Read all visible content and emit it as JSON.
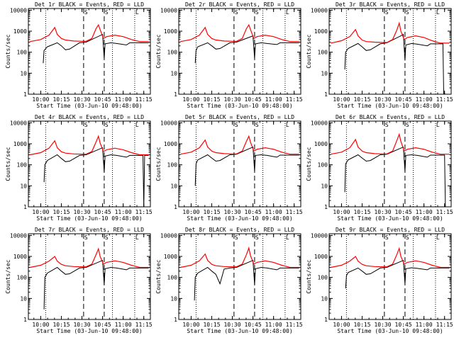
{
  "figure": {
    "ylabel": "Counts/sec",
    "xlabel": "Start Time (03-Jun-10 09:48:00)",
    "x_ticks": [
      "10:00",
      "10:15",
      "10:30",
      "10:45",
      "11:00",
      "11:15"
    ],
    "y_ticks": [
      "1",
      "10",
      "100",
      "1000",
      "10000"
    ],
    "top_markers": [
      "S",
      "S",
      "L"
    ],
    "colors": {
      "events": "#000000",
      "lld": "#ff0000"
    }
  },
  "chart_data": [
    {
      "type": "line",
      "title": "Det 1r BLACK = Events, RED = LLD",
      "xlim": [
        9.85,
        11.33
      ],
      "ylim": [
        1,
        12000
      ],
      "yscale": "log",
      "dotted_x": [
        10.06,
        10.87,
        11.14
      ],
      "dashed_x": [
        10.52,
        10.77
      ],
      "series": [
        {
          "name": "Events",
          "color": "#000000",
          "x": [
            10.03,
            10.04,
            10.08,
            10.2,
            10.25,
            10.3,
            10.35,
            10.47,
            10.55,
            10.75,
            10.77,
            10.78,
            10.85,
            10.92,
            11.04,
            11.08,
            11.31
          ],
          "values": [
            30,
            120,
            180,
            280,
            200,
            130,
            140,
            280,
            300,
            700,
            50,
            250,
            280,
            260,
            220,
            280,
            280
          ]
        },
        {
          "name": "LLD",
          "color": "#ff0000",
          "x": [
            9.87,
            10.0,
            10.1,
            10.17,
            10.2,
            10.25,
            10.3,
            10.4,
            10.5,
            10.55,
            10.62,
            10.67,
            10.7,
            10.72,
            10.76,
            10.8,
            10.9,
            11.0,
            11.1,
            11.2,
            11.31
          ],
          "values": [
            320,
            400,
            650,
            1500,
            700,
            450,
            380,
            340,
            330,
            330,
            450,
            1300,
            2000,
            1200,
            450,
            550,
            650,
            550,
            400,
            320,
            320
          ]
        }
      ]
    },
    {
      "type": "line",
      "title": "Det 2r BLACK = Events, RED = LLD",
      "xlim": [
        9.85,
        11.33
      ],
      "ylim": [
        1,
        12000
      ],
      "yscale": "log",
      "dotted_x": [
        10.06,
        10.87,
        11.14
      ],
      "dashed_x": [
        10.52,
        10.77
      ],
      "series": [
        {
          "name": "Events",
          "color": "#000000",
          "x": [
            10.05,
            10.06,
            10.08,
            10.2,
            10.25,
            10.3,
            10.35,
            10.47,
            10.55,
            10.75,
            10.77,
            10.78,
            10.85,
            10.92,
            11.04,
            11.08,
            11.31
          ],
          "values": [
            30,
            120,
            180,
            280,
            200,
            140,
            150,
            280,
            300,
            600,
            50,
            250,
            280,
            260,
            230,
            280,
            280
          ]
        },
        {
          "name": "LLD",
          "color": "#ff0000",
          "x": [
            9.87,
            10.0,
            10.1,
            10.17,
            10.2,
            10.25,
            10.3,
            10.4,
            10.5,
            10.55,
            10.62,
            10.67,
            10.7,
            10.72,
            10.76,
            10.8,
            10.9,
            11.0,
            11.1,
            11.2,
            11.31
          ],
          "values": [
            320,
            400,
            650,
            1500,
            700,
            450,
            380,
            340,
            330,
            330,
            450,
            1300,
            2000,
            1200,
            450,
            550,
            650,
            550,
            400,
            320,
            320
          ]
        }
      ]
    },
    {
      "type": "line",
      "title": "Det 3r BLACK = Events, RED = LLD",
      "xlim": [
        9.85,
        11.33
      ],
      "ylim": [
        1,
        12000
      ],
      "yscale": "log",
      "dotted_x": [
        10.06,
        10.87,
        11.14
      ],
      "dashed_x": [
        10.52,
        10.77
      ],
      "series": [
        {
          "name": "Events",
          "color": "#000000",
          "x": [
            10.04,
            10.05,
            10.08,
            10.2,
            10.25,
            10.3,
            10.35,
            10.47,
            10.55,
            10.72,
            10.75,
            10.77,
            10.78,
            10.85,
            10.92,
            11.04,
            11.08,
            11.2,
            11.23,
            11.24
          ],
          "values": [
            15,
            100,
            150,
            260,
            180,
            120,
            130,
            250,
            280,
            600,
            700,
            40,
            220,
            260,
            240,
            200,
            250,
            250,
            250,
            1
          ]
        },
        {
          "name": "LLD",
          "color": "#ff0000",
          "x": [
            9.87,
            10.0,
            10.1,
            10.17,
            10.2,
            10.25,
            10.3,
            10.4,
            10.5,
            10.55,
            10.62,
            10.67,
            10.7,
            10.72,
            10.76,
            10.8,
            10.9,
            11.0,
            11.1,
            11.2,
            11.31
          ],
          "values": [
            270,
            350,
            550,
            1200,
            600,
            380,
            320,
            300,
            290,
            290,
            400,
            1100,
            2400,
            1000,
            400,
            500,
            600,
            500,
            350,
            270,
            270
          ]
        }
      ]
    },
    {
      "type": "line",
      "title": "Det 4r BLACK = Events, RED = LLD",
      "xlim": [
        9.85,
        11.33
      ],
      "ylim": [
        1,
        12000
      ],
      "yscale": "log",
      "dotted_x": [
        10.06,
        10.87,
        11.14
      ],
      "dashed_x": [
        10.52,
        10.77
      ],
      "series": [
        {
          "name": "Events",
          "color": "#000000",
          "x": [
            10.04,
            10.05,
            10.08,
            10.2,
            10.25,
            10.3,
            10.35,
            10.47,
            10.55,
            10.75,
            10.77,
            10.78,
            10.85,
            10.92,
            11.04,
            11.08,
            11.2,
            11.24,
            11.25,
            11.26,
            11.31
          ],
          "values": [
            15,
            100,
            160,
            300,
            200,
            140,
            150,
            280,
            300,
            650,
            45,
            260,
            300,
            280,
            230,
            280,
            280,
            280,
            1,
            280,
            280
          ]
        },
        {
          "name": "LLD",
          "color": "#ff0000",
          "x": [
            9.87,
            10.0,
            10.1,
            10.17,
            10.2,
            10.25,
            10.3,
            10.4,
            10.5,
            10.55,
            10.62,
            10.67,
            10.7,
            10.72,
            10.76,
            10.8,
            10.9,
            11.0,
            11.1,
            11.2,
            11.31
          ],
          "values": [
            300,
            380,
            620,
            1400,
            650,
            420,
            360,
            330,
            320,
            320,
            430,
            1200,
            2300,
            1100,
            430,
            520,
            620,
            520,
            380,
            300,
            300
          ]
        }
      ]
    },
    {
      "type": "line",
      "title": "Det 5r BLACK = Events, RED = LLD",
      "xlim": [
        9.85,
        11.33
      ],
      "ylim": [
        1,
        12000
      ],
      "yscale": "log",
      "dotted_x": [
        10.06,
        10.87,
        11.14
      ],
      "dashed_x": [
        10.52,
        10.77
      ],
      "series": [
        {
          "name": "Events",
          "color": "#000000",
          "x": [
            10.05,
            10.06,
            10.08,
            10.2,
            10.25,
            10.3,
            10.35,
            10.47,
            10.55,
            10.75,
            10.77,
            10.78,
            10.85,
            10.92,
            11.04,
            11.08,
            11.31
          ],
          "values": [
            10,
            110,
            170,
            300,
            210,
            150,
            160,
            300,
            320,
            700,
            50,
            280,
            300,
            280,
            230,
            290,
            290
          ]
        },
        {
          "name": "LLD",
          "color": "#ff0000",
          "x": [
            9.87,
            10.0,
            10.1,
            10.17,
            10.2,
            10.25,
            10.3,
            10.4,
            10.5,
            10.55,
            10.62,
            10.67,
            10.7,
            10.72,
            10.76,
            10.8,
            10.9,
            11.0,
            11.1,
            11.2,
            11.31
          ],
          "values": [
            320,
            400,
            650,
            1500,
            700,
            450,
            380,
            340,
            330,
            330,
            450,
            1300,
            2300,
            1200,
            450,
            550,
            650,
            550,
            400,
            320,
            320
          ]
        }
      ]
    },
    {
      "type": "line",
      "title": "Det 6r BLACK = Events, RED = LLD",
      "xlim": [
        9.85,
        11.33
      ],
      "ylim": [
        1,
        12000
      ],
      "yscale": "log",
      "dotted_x": [
        10.06,
        10.87,
        11.14
      ],
      "dashed_x": [
        10.52,
        10.77
      ],
      "series": [
        {
          "name": "Events",
          "color": "#000000",
          "x": [
            10.04,
            10.05,
            10.08,
            10.2,
            10.25,
            10.3,
            10.35,
            10.47,
            10.55,
            10.75,
            10.77,
            10.78,
            10.85,
            10.92,
            11.04,
            11.08,
            11.2,
            11.25,
            11.26
          ],
          "values": [
            5,
            110,
            170,
            300,
            210,
            150,
            160,
            300,
            320,
            700,
            50,
            280,
            300,
            280,
            230,
            290,
            290,
            290,
            1
          ]
        },
        {
          "name": "LLD",
          "color": "#ff0000",
          "x": [
            9.87,
            10.0,
            10.1,
            10.17,
            10.2,
            10.25,
            10.3,
            10.4,
            10.5,
            10.55,
            10.62,
            10.67,
            10.7,
            10.72,
            10.76,
            10.8,
            10.9,
            11.0,
            11.1,
            11.2,
            11.31
          ],
          "values": [
            320,
            400,
            650,
            1600,
            700,
            450,
            380,
            340,
            330,
            330,
            450,
            1400,
            2800,
            1300,
            450,
            550,
            650,
            550,
            400,
            320,
            320
          ]
        }
      ]
    },
    {
      "type": "line",
      "title": "Det 7r BLACK = Events, RED = LLD",
      "xlim": [
        9.85,
        11.33
      ],
      "ylim": [
        1,
        12000
      ],
      "yscale": "log",
      "dotted_x": [
        10.06,
        10.87,
        11.14
      ],
      "dashed_x": [
        10.52,
        10.77
      ],
      "series": [
        {
          "name": "Events",
          "color": "#000000",
          "x": [
            10.04,
            10.05,
            10.08,
            10.2,
            10.25,
            10.3,
            10.35,
            10.47,
            10.55,
            10.75,
            10.77,
            10.78,
            10.85,
            10.92,
            11.04,
            11.08,
            11.31
          ],
          "values": [
            3,
            100,
            160,
            300,
            200,
            140,
            150,
            280,
            300,
            650,
            45,
            260,
            300,
            280,
            230,
            280,
            280
          ]
        },
        {
          "name": "LLD",
          "color": "#ff0000",
          "x": [
            9.87,
            10.0,
            10.1,
            10.17,
            10.2,
            10.25,
            10.3,
            10.4,
            10.5,
            10.55,
            10.62,
            10.67,
            10.7,
            10.72,
            10.76,
            10.8,
            10.9,
            11.0,
            11.1,
            11.2,
            11.31
          ],
          "values": [
            300,
            380,
            600,
            1000,
            600,
            420,
            360,
            330,
            320,
            320,
            430,
            1200,
            2300,
            1000,
            430,
            520,
            620,
            520,
            380,
            300,
            300
          ]
        }
      ]
    },
    {
      "type": "line",
      "title": "Det 8r BLACK = Events, RED = LLD",
      "xlim": [
        9.85,
        11.33
      ],
      "ylim": [
        1,
        12000
      ],
      "yscale": "log",
      "dotted_x": [
        10.06,
        10.87,
        11.14
      ],
      "dashed_x": [
        10.52,
        10.77
      ],
      "series": [
        {
          "name": "Events",
          "color": "#000000",
          "x": [
            10.04,
            10.05,
            10.08,
            10.2,
            10.25,
            10.3,
            10.35,
            10.4,
            10.47,
            10.55,
            10.75,
            10.77,
            10.78,
            10.85,
            10.92,
            11.04,
            11.08,
            11.31
          ],
          "values": [
            8,
            100,
            160,
            300,
            200,
            140,
            50,
            250,
            280,
            300,
            650,
            45,
            260,
            300,
            280,
            230,
            280,
            280
          ]
        },
        {
          "name": "LLD",
          "color": "#ff0000",
          "x": [
            9.87,
            10.0,
            10.1,
            10.17,
            10.2,
            10.25,
            10.3,
            10.4,
            10.5,
            10.55,
            10.62,
            10.67,
            10.7,
            10.72,
            10.76,
            10.8,
            10.9,
            11.0,
            11.1,
            11.2,
            11.31
          ],
          "values": [
            300,
            380,
            620,
            1300,
            650,
            420,
            360,
            330,
            320,
            320,
            430,
            1200,
            2500,
            1100,
            430,
            520,
            620,
            520,
            380,
            300,
            300
          ]
        }
      ]
    },
    {
      "type": "line",
      "title": "Det 9r BLACK = Events, RED = LLD",
      "xlim": [
        9.85,
        11.33
      ],
      "ylim": [
        1,
        12000
      ],
      "yscale": "log",
      "dotted_x": [
        10.06,
        10.87,
        11.14
      ],
      "dashed_x": [
        10.52,
        10.77
      ],
      "series": [
        {
          "name": "Events",
          "color": "#000000",
          "x": [
            10.05,
            10.06,
            10.08,
            10.2,
            10.25,
            10.3,
            10.35,
            10.47,
            10.55,
            10.75,
            10.77,
            10.78,
            10.85,
            10.92,
            11.04,
            11.08,
            11.31
          ],
          "values": [
            30,
            120,
            170,
            280,
            200,
            140,
            150,
            280,
            300,
            650,
            50,
            260,
            290,
            270,
            230,
            280,
            280
          ]
        },
        {
          "name": "LLD",
          "color": "#ff0000",
          "x": [
            9.87,
            10.0,
            10.1,
            10.17,
            10.2,
            10.25,
            10.3,
            10.4,
            10.5,
            10.55,
            10.62,
            10.67,
            10.7,
            10.72,
            10.76,
            10.8,
            10.9,
            11.0,
            11.1,
            11.2,
            11.31
          ],
          "values": [
            300,
            380,
            600,
            1000,
            600,
            420,
            360,
            330,
            320,
            320,
            430,
            1200,
            2400,
            1000,
            430,
            520,
            620,
            520,
            380,
            300,
            300
          ]
        }
      ]
    }
  ]
}
